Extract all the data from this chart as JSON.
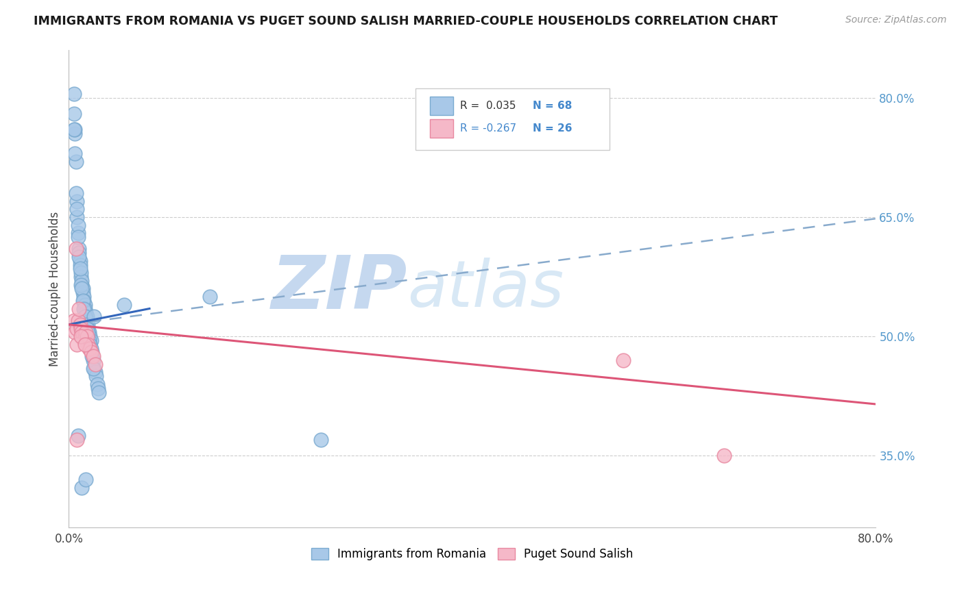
{
  "title": "IMMIGRANTS FROM ROMANIA VS PUGET SOUND SALISH MARRIED-COUPLE HOUSEHOLDS CORRELATION CHART",
  "source": "Source: ZipAtlas.com",
  "ylabel": "Married-couple Households",
  "x_min": 0.0,
  "x_max": 0.8,
  "y_min": 0.26,
  "y_max": 0.86,
  "right_ytick_labels": [
    "35.0%",
    "50.0%",
    "65.0%",
    "80.0%"
  ],
  "right_ytick_values": [
    0.35,
    0.5,
    0.65,
    0.8
  ],
  "blue_color": "#a8c8e8",
  "pink_color": "#f5b8c8",
  "blue_edge": "#7aaad0",
  "pink_edge": "#e888a0",
  "trend_blue_solid": "#3366bb",
  "trend_blue_dashed": "#88aacc",
  "trend_pink_solid": "#dd5577",
  "watermark_zip_color": "#c5d8ef",
  "watermark_atlas_color": "#d8e8f5",
  "blue_scatter_x": [
    0.005,
    0.006,
    0.006,
    0.007,
    0.008,
    0.008,
    0.009,
    0.009,
    0.01,
    0.01,
    0.011,
    0.011,
    0.012,
    0.012,
    0.013,
    0.013,
    0.014,
    0.014,
    0.015,
    0.015,
    0.016,
    0.016,
    0.017,
    0.017,
    0.018,
    0.018,
    0.019,
    0.019,
    0.02,
    0.02,
    0.021,
    0.022,
    0.023,
    0.024,
    0.025,
    0.026,
    0.027,
    0.028,
    0.029,
    0.03,
    0.005,
    0.006,
    0.007,
    0.008,
    0.009,
    0.01,
    0.011,
    0.012,
    0.013,
    0.014,
    0.015,
    0.016,
    0.017,
    0.018,
    0.019,
    0.02,
    0.021,
    0.022,
    0.023,
    0.024,
    0.005,
    0.025,
    0.055,
    0.14,
    0.25,
    0.009,
    0.013,
    0.017
  ],
  "blue_scatter_y": [
    0.78,
    0.755,
    0.76,
    0.72,
    0.65,
    0.67,
    0.63,
    0.64,
    0.61,
    0.605,
    0.595,
    0.59,
    0.575,
    0.58,
    0.565,
    0.57,
    0.56,
    0.555,
    0.55,
    0.545,
    0.54,
    0.535,
    0.53,
    0.525,
    0.525,
    0.52,
    0.515,
    0.51,
    0.505,
    0.5,
    0.5,
    0.495,
    0.48,
    0.47,
    0.46,
    0.455,
    0.45,
    0.44,
    0.435,
    0.43,
    0.76,
    0.73,
    0.68,
    0.66,
    0.625,
    0.6,
    0.585,
    0.565,
    0.56,
    0.545,
    0.535,
    0.525,
    0.515,
    0.51,
    0.505,
    0.495,
    0.49,
    0.485,
    0.475,
    0.46,
    0.805,
    0.525,
    0.54,
    0.55,
    0.37,
    0.375,
    0.31,
    0.32
  ],
  "pink_scatter_x": [
    0.005,
    0.006,
    0.007,
    0.008,
    0.009,
    0.01,
    0.011,
    0.012,
    0.013,
    0.014,
    0.015,
    0.016,
    0.017,
    0.018,
    0.019,
    0.02,
    0.021,
    0.022,
    0.024,
    0.026,
    0.008,
    0.012,
    0.016,
    0.55,
    0.65,
    0.008
  ],
  "pink_scatter_y": [
    0.52,
    0.505,
    0.61,
    0.51,
    0.52,
    0.535,
    0.515,
    0.51,
    0.505,
    0.5,
    0.495,
    0.5,
    0.505,
    0.5,
    0.49,
    0.485,
    0.485,
    0.48,
    0.475,
    0.465,
    0.49,
    0.5,
    0.49,
    0.47,
    0.35,
    0.37
  ],
  "blue_solid_trend_x": [
    0.0,
    0.08
  ],
  "blue_solid_trend_y": [
    0.515,
    0.535
  ],
  "blue_dashed_trend_x": [
    0.0,
    0.8
  ],
  "blue_dashed_trend_y": [
    0.515,
    0.648
  ],
  "pink_solid_trend_x": [
    0.0,
    0.8
  ],
  "pink_solid_trend_y": [
    0.515,
    0.415
  ]
}
